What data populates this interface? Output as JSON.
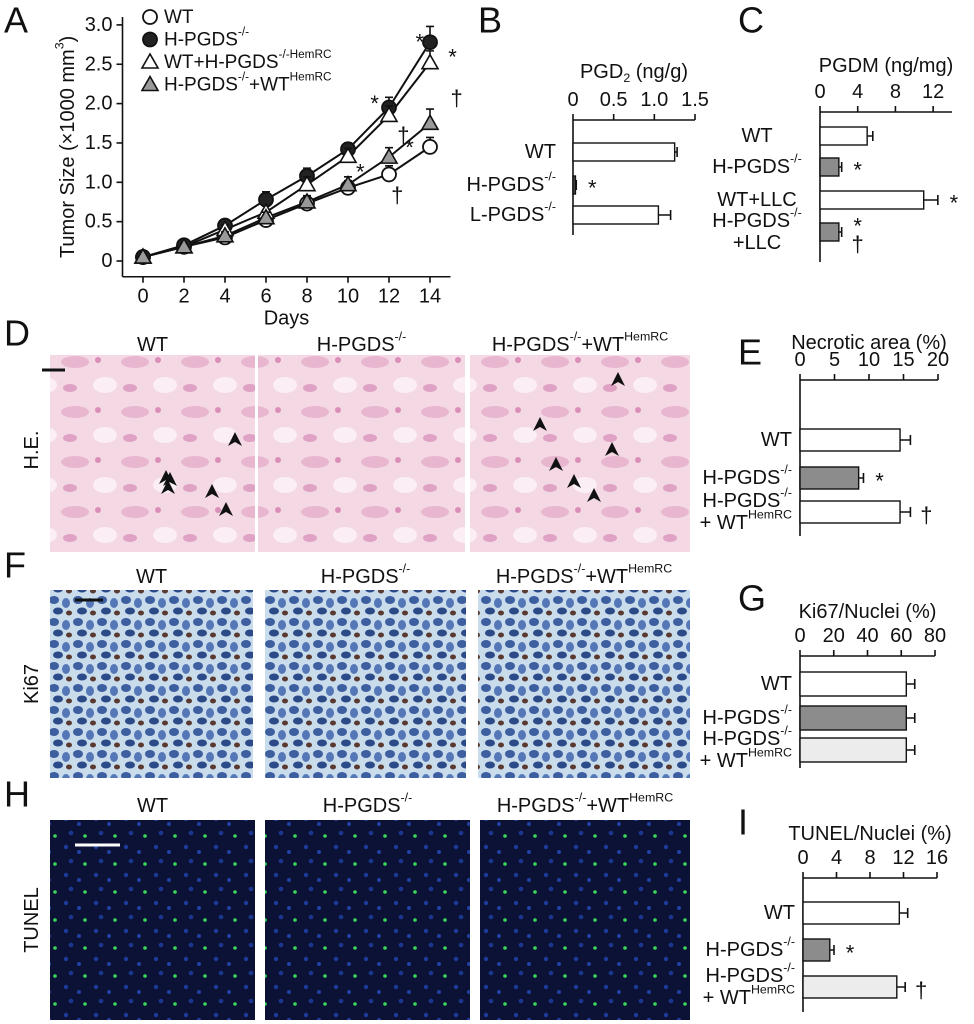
{
  "chart_data": [
    {
      "type": "line",
      "letter": "A",
      "ylabel": [
        "Tumor Size (×1000 mm",
        {
          "sup": "3"
        },
        ")"
      ],
      "xlabel": "Days",
      "x": [
        0,
        2,
        4,
        6,
        8,
        10,
        12,
        14
      ],
      "xlim": [
        -1,
        15
      ],
      "xticks": [
        0,
        2,
        4,
        6,
        8,
        10,
        12,
        14
      ],
      "ylim": [
        -0.2,
        3.1
      ],
      "yticks": [
        0,
        0.5,
        {
          "value": 1,
          "label": "1.0"
        },
        1.5,
        {
          "value": 2,
          "label": "2.0"
        },
        2.5,
        {
          "value": 3,
          "label": "3.0"
        }
      ],
      "series": [
        {
          "name": [
            "WT"
          ],
          "marker": "circle",
          "fill": "#ffffff",
          "color": "#111111",
          "values": [
            0.05,
            0.18,
            0.3,
            0.52,
            0.73,
            0.93,
            1.1,
            1.45
          ],
          "errors": [
            0.02,
            0.03,
            0.04,
            0.06,
            0.07,
            0.09,
            0.11,
            0.12
          ]
        },
        {
          "name": [
            "H-PGDS",
            {
              "sup": "-/-"
            }
          ],
          "marker": "circle",
          "fill": "#222222",
          "color": "#111111",
          "values": [
            0.05,
            0.2,
            0.45,
            0.78,
            1.08,
            1.42,
            1.95,
            2.78
          ],
          "errors": [
            0.02,
            0.04,
            0.08,
            0.1,
            0.1,
            0.08,
            0.13,
            0.2
          ]
        },
        {
          "name": [
            "WT+H-PGDS",
            {
              "sup": "-/-HemRC"
            }
          ],
          "marker": "triangle",
          "fill": "#ffffff",
          "color": "#111111",
          "values": [
            0.05,
            0.18,
            0.4,
            0.62,
            0.97,
            1.33,
            1.85,
            2.52
          ],
          "errors": [
            0.02,
            0.03,
            0.06,
            0.08,
            0.1,
            0.1,
            0.12,
            0.15
          ]
        },
        {
          "name": [
            "H-PGDS",
            {
              "sup": "-/-"
            },
            "+WT",
            {
              "sup": "HemRC"
            }
          ],
          "marker": "triangle",
          "fill": "#9a9a9a",
          "color": "#111111",
          "values": [
            0.05,
            0.18,
            0.32,
            0.55,
            0.75,
            0.97,
            1.32,
            1.75
          ],
          "errors": [
            0.02,
            0.03,
            0.05,
            0.07,
            0.08,
            0.1,
            0.12,
            0.18
          ]
        }
      ],
      "annotations": [
        {
          "text": "*",
          "x": 10.6,
          "y": 1.13
        },
        {
          "text": "*",
          "x": 11.3,
          "y": 2.0
        },
        {
          "text": "*",
          "x": 13.0,
          "y": 1.44
        },
        {
          "text": "†",
          "x": 12.7,
          "y": 1.6
        },
        {
          "text": "*",
          "x": 13.5,
          "y": 2.78
        },
        {
          "text": "*",
          "x": 15.1,
          "y": 2.59
        },
        {
          "text": "†",
          "x": 15.3,
          "y": 2.07
        },
        {
          "text": "†",
          "x": 12.4,
          "y": 0.84
        }
      ]
    },
    {
      "type": "bar",
      "letter": "B",
      "xlabel": [
        "PGD",
        {
          "sub": "2"
        },
        " (ng/g)"
      ],
      "categories": [
        [
          [
            "WT"
          ]
        ],
        [
          [
            "H-PGDS",
            {
              "sup": "-/-"
            }
          ]
        ],
        [
          [
            "L-PGDS",
            {
              "sup": "-/-"
            }
          ]
        ]
      ],
      "values": [
        1.25,
        0.03,
        1.05
      ],
      "errors": [
        0.03,
        0.01,
        0.15
      ],
      "colors": [
        "#ffffff",
        "#555555",
        "#ffffff"
      ],
      "marks": [
        null,
        [
          "*"
        ],
        null
      ],
      "xlim": [
        0,
        1.5
      ],
      "xticks": [
        0,
        0.5,
        {
          "value": 1,
          "label": "1.0"
        },
        1.5
      ]
    },
    {
      "type": "bar",
      "letter": "C",
      "xlabel": "PGDM (ng/mg)",
      "categories": [
        [
          [
            "WT"
          ]
        ],
        [
          [
            "H-PGDS",
            {
              "sup": "-/-"
            }
          ]
        ],
        [
          [
            "WT+LLC"
          ]
        ],
        [
          [
            "H-PGDS",
            {
              "sup": "-/-"
            }
          ],
          [
            "+LLC"
          ]
        ]
      ],
      "values": [
        5,
        2,
        11,
        2
      ],
      "errors": [
        0.6,
        0.3,
        1.5,
        0.3
      ],
      "colors": [
        "#ffffff",
        "#8c8c8c",
        "#ffffff",
        "#8c8c8c"
      ],
      "marks": [
        null,
        [
          "*"
        ],
        [
          "*"
        ],
        [
          "*",
          "†"
        ]
      ],
      "xlim": [
        0,
        14
      ],
      "xticks": [
        0,
        4,
        8,
        12
      ]
    },
    {
      "type": "bar",
      "letter": "E",
      "xlabel": "Necrotic area (%)",
      "categories": [
        [
          [
            "WT"
          ]
        ],
        [
          [
            "H-PGDS",
            {
              "sup": "-/-"
            }
          ]
        ],
        [
          [
            "H-PGDS",
            {
              "sup": "-/-"
            }
          ],
          [
            "+ WT",
            {
              "sup": "HemRC"
            }
          ]
        ]
      ],
      "values": [
        14.5,
        8.5,
        14.5
      ],
      "errors": [
        1.5,
        0.7,
        1.5
      ],
      "colors": [
        "#ffffff",
        "#8c8c8c",
        "#ffffff"
      ],
      "marks": [
        null,
        [
          "*"
        ],
        [
          "†"
        ]
      ],
      "xlim": [
        0,
        20
      ],
      "xticks": [
        0,
        5,
        10,
        15,
        20
      ]
    },
    {
      "type": "bar",
      "letter": "G",
      "xlabel": "Ki67/Nuclei (%)",
      "categories": [
        [
          [
            "WT"
          ]
        ],
        [
          [
            "H-PGDS",
            {
              "sup": "-/-"
            }
          ]
        ],
        [
          [
            "H-PGDS",
            {
              "sup": "-/-"
            }
          ],
          [
            "+ WT",
            {
              "sup": "HemRC"
            }
          ]
        ]
      ],
      "values": [
        63,
        63,
        63
      ],
      "errors": [
        5,
        5,
        5
      ],
      "colors": [
        "#ffffff",
        "#8c8c8c",
        "#ececec"
      ],
      "marks": [
        null,
        null,
        null
      ],
      "xlim": [
        0,
        80
      ],
      "xticks": [
        0,
        20,
        40,
        60,
        80
      ]
    },
    {
      "type": "bar",
      "letter": "I",
      "xlabel": "TUNEL/Nuclei (%)",
      "categories": [
        [
          [
            "WT"
          ]
        ],
        [
          [
            "H-PGDS",
            {
              "sup": "-/-"
            }
          ]
        ],
        [
          [
            "H-PGDS",
            {
              "sup": "-/-"
            }
          ],
          [
            "+ WT",
            {
              "sup": "HemRC"
            }
          ]
        ]
      ],
      "values": [
        11.5,
        3.2,
        11.2
      ],
      "errors": [
        1,
        0.5,
        1
      ],
      "colors": [
        "#ffffff",
        "#8c8c8c",
        "#ececec"
      ],
      "marks": [
        null,
        [
          "*"
        ],
        [
          "†"
        ]
      ],
      "xlim": [
        0,
        16
      ],
      "xticks": [
        0,
        4,
        8,
        12,
        16
      ]
    }
  ],
  "micrographs": [
    {
      "letter": "D",
      "row_label": "H.E.",
      "titles": [
        [
          "WT"
        ],
        [
          "H-PGDS",
          {
            "sup": "-/-"
          }
        ],
        [
          "H-PGDS",
          {
            "sup": "-/-"
          },
          "+WT",
          {
            "sup": "HemRC"
          }
        ]
      ]
    },
    {
      "letter": "F",
      "row_label": "Ki67",
      "titles": [
        [
          "WT"
        ],
        [
          "H-PGDS",
          {
            "sup": "-/-"
          }
        ],
        [
          "H-PGDS",
          {
            "sup": "-/-"
          },
          "+WT",
          {
            "sup": "HemRC"
          }
        ]
      ]
    },
    {
      "letter": "H",
      "row_label": "TUNEL",
      "titles": [
        [
          "WT"
        ],
        [
          "H-PGDS",
          {
            "sup": "-/-"
          }
        ],
        [
          "H-PGDS",
          {
            "sup": "-/-"
          },
          "+WT",
          {
            "sup": "HemRC"
          }
        ]
      ]
    }
  ]
}
